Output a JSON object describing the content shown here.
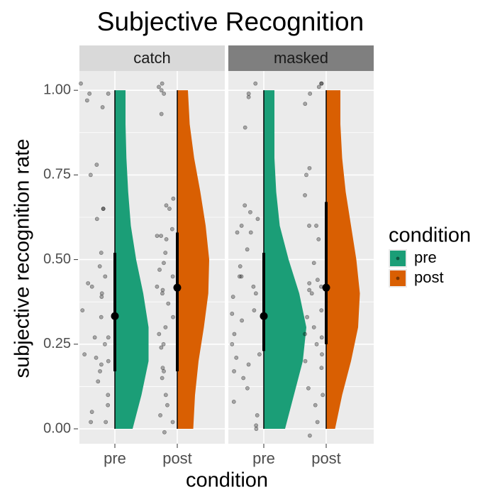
{
  "chart_data": {
    "type": "raincloud",
    "title": "Subjective Recognition",
    "xlabel": "condition",
    "ylabel": "subjective recognition rate",
    "ylim": [
      -0.044,
      1.057
    ],
    "yticks": [
      {
        "value": 0,
        "label": "0.00"
      },
      {
        "value": 0.25,
        "label": "0.25"
      },
      {
        "value": 0.5,
        "label": "0.50"
      },
      {
        "value": 0.75,
        "label": "0.75"
      },
      {
        "value": 1,
        "label": "1.00"
      }
    ],
    "yminor": [
      0.125,
      0.375,
      0.625,
      0.875
    ],
    "grid": true,
    "categories": [
      "pre",
      "post"
    ],
    "series": [
      {
        "name": "pre",
        "color": "#1b9e77"
      },
      {
        "name": "post",
        "color": "#d95f02"
      }
    ],
    "legend_title": "condition",
    "legend_position": "right",
    "density_y": [
      0,
      0.1,
      0.2,
      0.3,
      0.4,
      0.5,
      0.6,
      0.7,
      0.8,
      0.9,
      1.0
    ],
    "facets": [
      {
        "title": "catch",
        "strip_color": "#d9d9d9",
        "groups": [
          {
            "points": [
              1.02,
              0.99,
              0.99,
              0.97,
              0.95,
              0.78,
              0.75,
              0.65,
              0.65,
              0.62,
              0.52,
              0.48,
              0.45,
              0.43,
              0.42,
              0.4,
              0.39,
              0.35,
              0.33,
              0.27,
              0.27,
              0.25,
              0.22,
              0.21,
              0.2,
              0.19,
              0.17,
              0.14,
              0.1,
              0.07,
              0.05,
              0.02,
              0.02
            ],
            "density": [
              1.0,
              1.5,
              1.9,
              1.9,
              1.6,
              1.2,
              0.9,
              0.75,
              0.65,
              0.6,
              0.6
            ],
            "median": 0.333,
            "thick": [
              0.17,
              0.52
            ],
            "thin": [
              0,
              1
            ]
          },
          {
            "points": [
              1.02,
              1.01,
              1.0,
              0.99,
              0.93,
              0.68,
              0.66,
              0.65,
              0.59,
              0.57,
              0.57,
              0.56,
              0.52,
              0.49,
              0.47,
              0.45,
              0.42,
              0.41,
              0.4,
              0.37,
              0.33,
              0.3,
              0.28,
              0.25,
              0.24,
              0.18,
              0.17,
              0.15,
              0.1,
              0.07,
              0.04,
              0.02,
              -0.01
            ],
            "density": [
              0.9,
              1.0,
              1.2,
              1.5,
              1.75,
              1.8,
              1.6,
              1.3,
              0.95,
              0.7,
              0.6
            ],
            "median": 0.417,
            "thick": [
              0.17,
              0.58
            ],
            "thin": [
              0,
              1
            ]
          }
        ]
      },
      {
        "title": "masked",
        "strip_color": "#7f7f7f",
        "groups": [
          {
            "points": [
              1.02,
              0.99,
              0.98,
              0.89,
              0.66,
              0.64,
              0.62,
              0.6,
              0.58,
              0.58,
              0.53,
              0.48,
              0.45,
              0.45,
              0.42,
              0.4,
              0.39,
              0.35,
              0.34,
              0.32,
              0.28,
              0.25,
              0.22,
              0.21,
              0.19,
              0.17,
              0.15,
              0.12,
              0.08,
              0.04,
              0.01,
              0.0
            ],
            "density": [
              1.2,
              1.7,
              2.2,
              2.4,
              2.0,
              1.4,
              0.9,
              0.7,
              0.6,
              0.6,
              0.6
            ],
            "median": 0.333,
            "thick": [
              0.23,
              0.52
            ],
            "thin": [
              0,
              1
            ]
          },
          {
            "points": [
              1.02,
              1.02,
              1.01,
              0.99,
              0.96,
              0.77,
              0.75,
              0.69,
              0.6,
              0.6,
              0.56,
              0.49,
              0.44,
              0.43,
              0.42,
              0.41,
              0.4,
              0.35,
              0.33,
              0.3,
              0.28,
              0.27,
              0.25,
              0.22,
              0.2,
              0.18,
              0.12,
              0.1,
              0.07,
              0.02,
              -0.02
            ],
            "density": [
              0.5,
              0.9,
              1.4,
              1.8,
              1.9,
              1.7,
              1.4,
              1.1,
              0.9,
              0.8,
              0.8
            ],
            "median": 0.417,
            "thick": [
              0.25,
              0.67
            ],
            "thin": [
              0,
              1
            ]
          }
        ]
      }
    ]
  }
}
